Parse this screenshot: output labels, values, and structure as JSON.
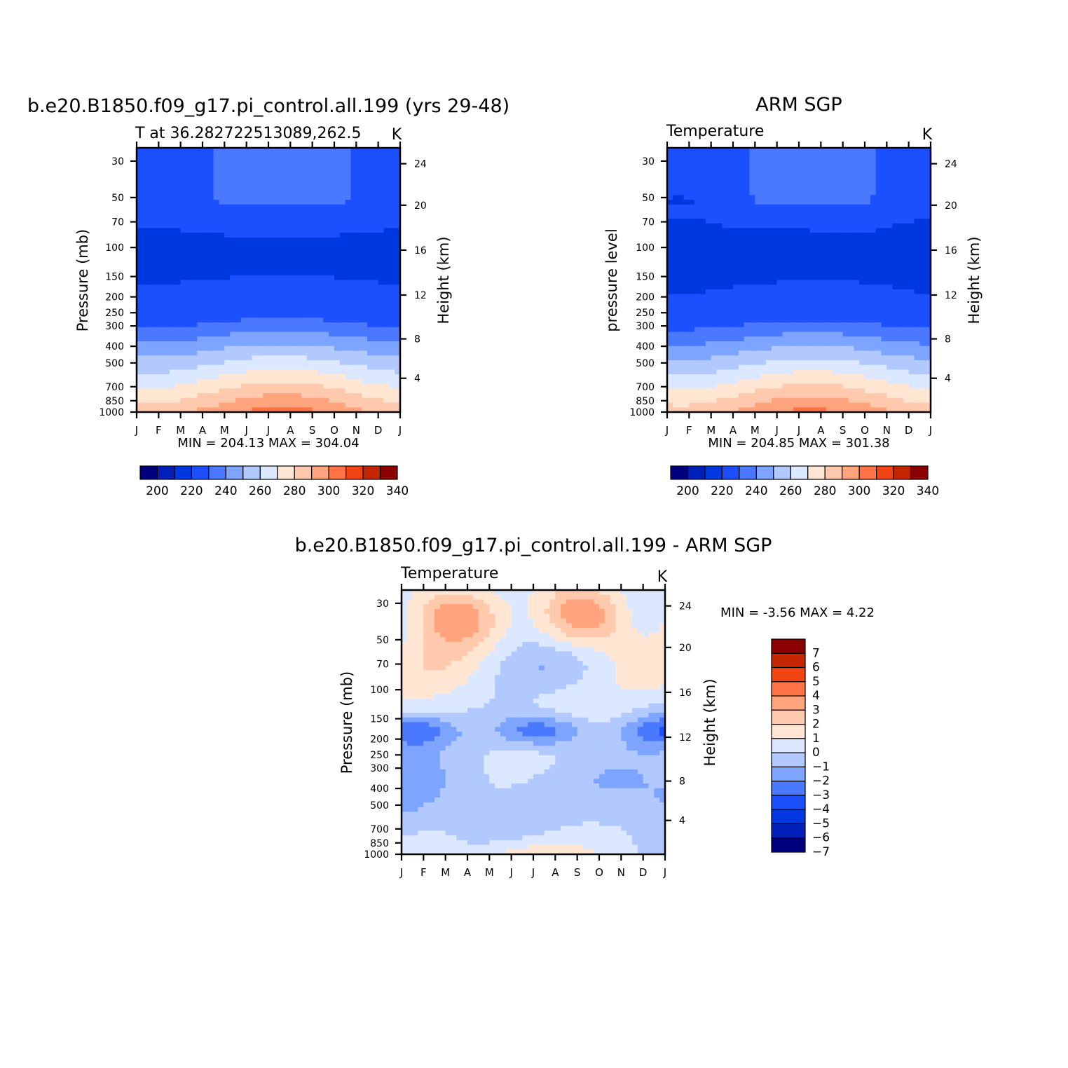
{
  "colors": [
    "#00007f",
    "#0020b8",
    "#0038e0",
    "#1c50ff",
    "#4a78ff",
    "#7da4ff",
    "#b1c9ff",
    "#dbe8ff",
    "#ffe6d3",
    "#ffc9ad",
    "#ffa47d",
    "#ff7447",
    "#f04412",
    "#c42600",
    "#8b0000"
  ],
  "chart_data": [
    {
      "type": "heatmap",
      "title": "b.e20.B1850.f09_g17.pi_control.all.199 (yrs 29-48)",
      "subtitle": "T at 36.282722513089,262.5",
      "units": "K",
      "ylabel": "Pressure (mb)",
      "ylabel_right": "Height (km)",
      "x_ticks": [
        "J",
        "F",
        "M",
        "A",
        "M",
        "J",
        "J",
        "A",
        "S",
        "O",
        "N",
        "D",
        "J"
      ],
      "y_ticks": [
        "30",
        "50",
        "70",
        "100",
        "150",
        "200",
        "250",
        "300",
        "400",
        "500",
        "700",
        "850",
        "1000"
      ],
      "y_right_ticks": [
        "24",
        "20",
        "16",
        "12",
        "8",
        "4"
      ],
      "min_max": "MIN = 204.13 MAX = 304.04",
      "colorbar_labels": [
        "200",
        "220",
        "240",
        "260",
        "280",
        "300",
        "320",
        "340"
      ],
      "z_min": 204.13,
      "z_max": 304.04
    },
    {
      "type": "heatmap",
      "title": "ARM SGP",
      "subtitle": "Temperature",
      "units": "K",
      "ylabel": "pressure level",
      "ylabel_right": "Height (km)",
      "x_ticks": [
        "J",
        "F",
        "M",
        "A",
        "M",
        "J",
        "J",
        "A",
        "S",
        "O",
        "N",
        "D",
        "J"
      ],
      "y_ticks": [
        "30",
        "50",
        "70",
        "100",
        "150",
        "200",
        "250",
        "300",
        "400",
        "500",
        "700",
        "850",
        "1000"
      ],
      "y_right_ticks": [
        "24",
        "20",
        "16",
        "12",
        "8",
        "4"
      ],
      "min_max": "MIN = 204.85 MAX = 301.38",
      "colorbar_labels": [
        "200",
        "220",
        "240",
        "260",
        "280",
        "300",
        "320",
        "340"
      ],
      "z_min": 204.85,
      "z_max": 301.38
    },
    {
      "type": "heatmap",
      "title": "b.e20.B1850.f09_g17.pi_control.all.199 - ARM SGP",
      "subtitle": "Temperature",
      "units": "K",
      "ylabel": "Pressure (mb)",
      "ylabel_right": "Height (km)",
      "x_ticks": [
        "J",
        "F",
        "M",
        "A",
        "M",
        "J",
        "J",
        "A",
        "S",
        "O",
        "N",
        "D",
        "J"
      ],
      "y_ticks": [
        "30",
        "50",
        "70",
        "100",
        "150",
        "200",
        "250",
        "300",
        "400",
        "500",
        "700",
        "850",
        "1000"
      ],
      "y_right_ticks": [
        "24",
        "20",
        "16",
        "12",
        "8",
        "4"
      ],
      "min_max": "MIN = -3.56 MAX = 4.22",
      "colorbar_labels": [
        "7",
        "6",
        "5",
        "4",
        "3",
        "2",
        "1",
        "0",
        "−1",
        "−2",
        "−3",
        "−4",
        "−5",
        "−6",
        "−7"
      ],
      "z_min": -3.56,
      "z_max": 4.22
    }
  ]
}
